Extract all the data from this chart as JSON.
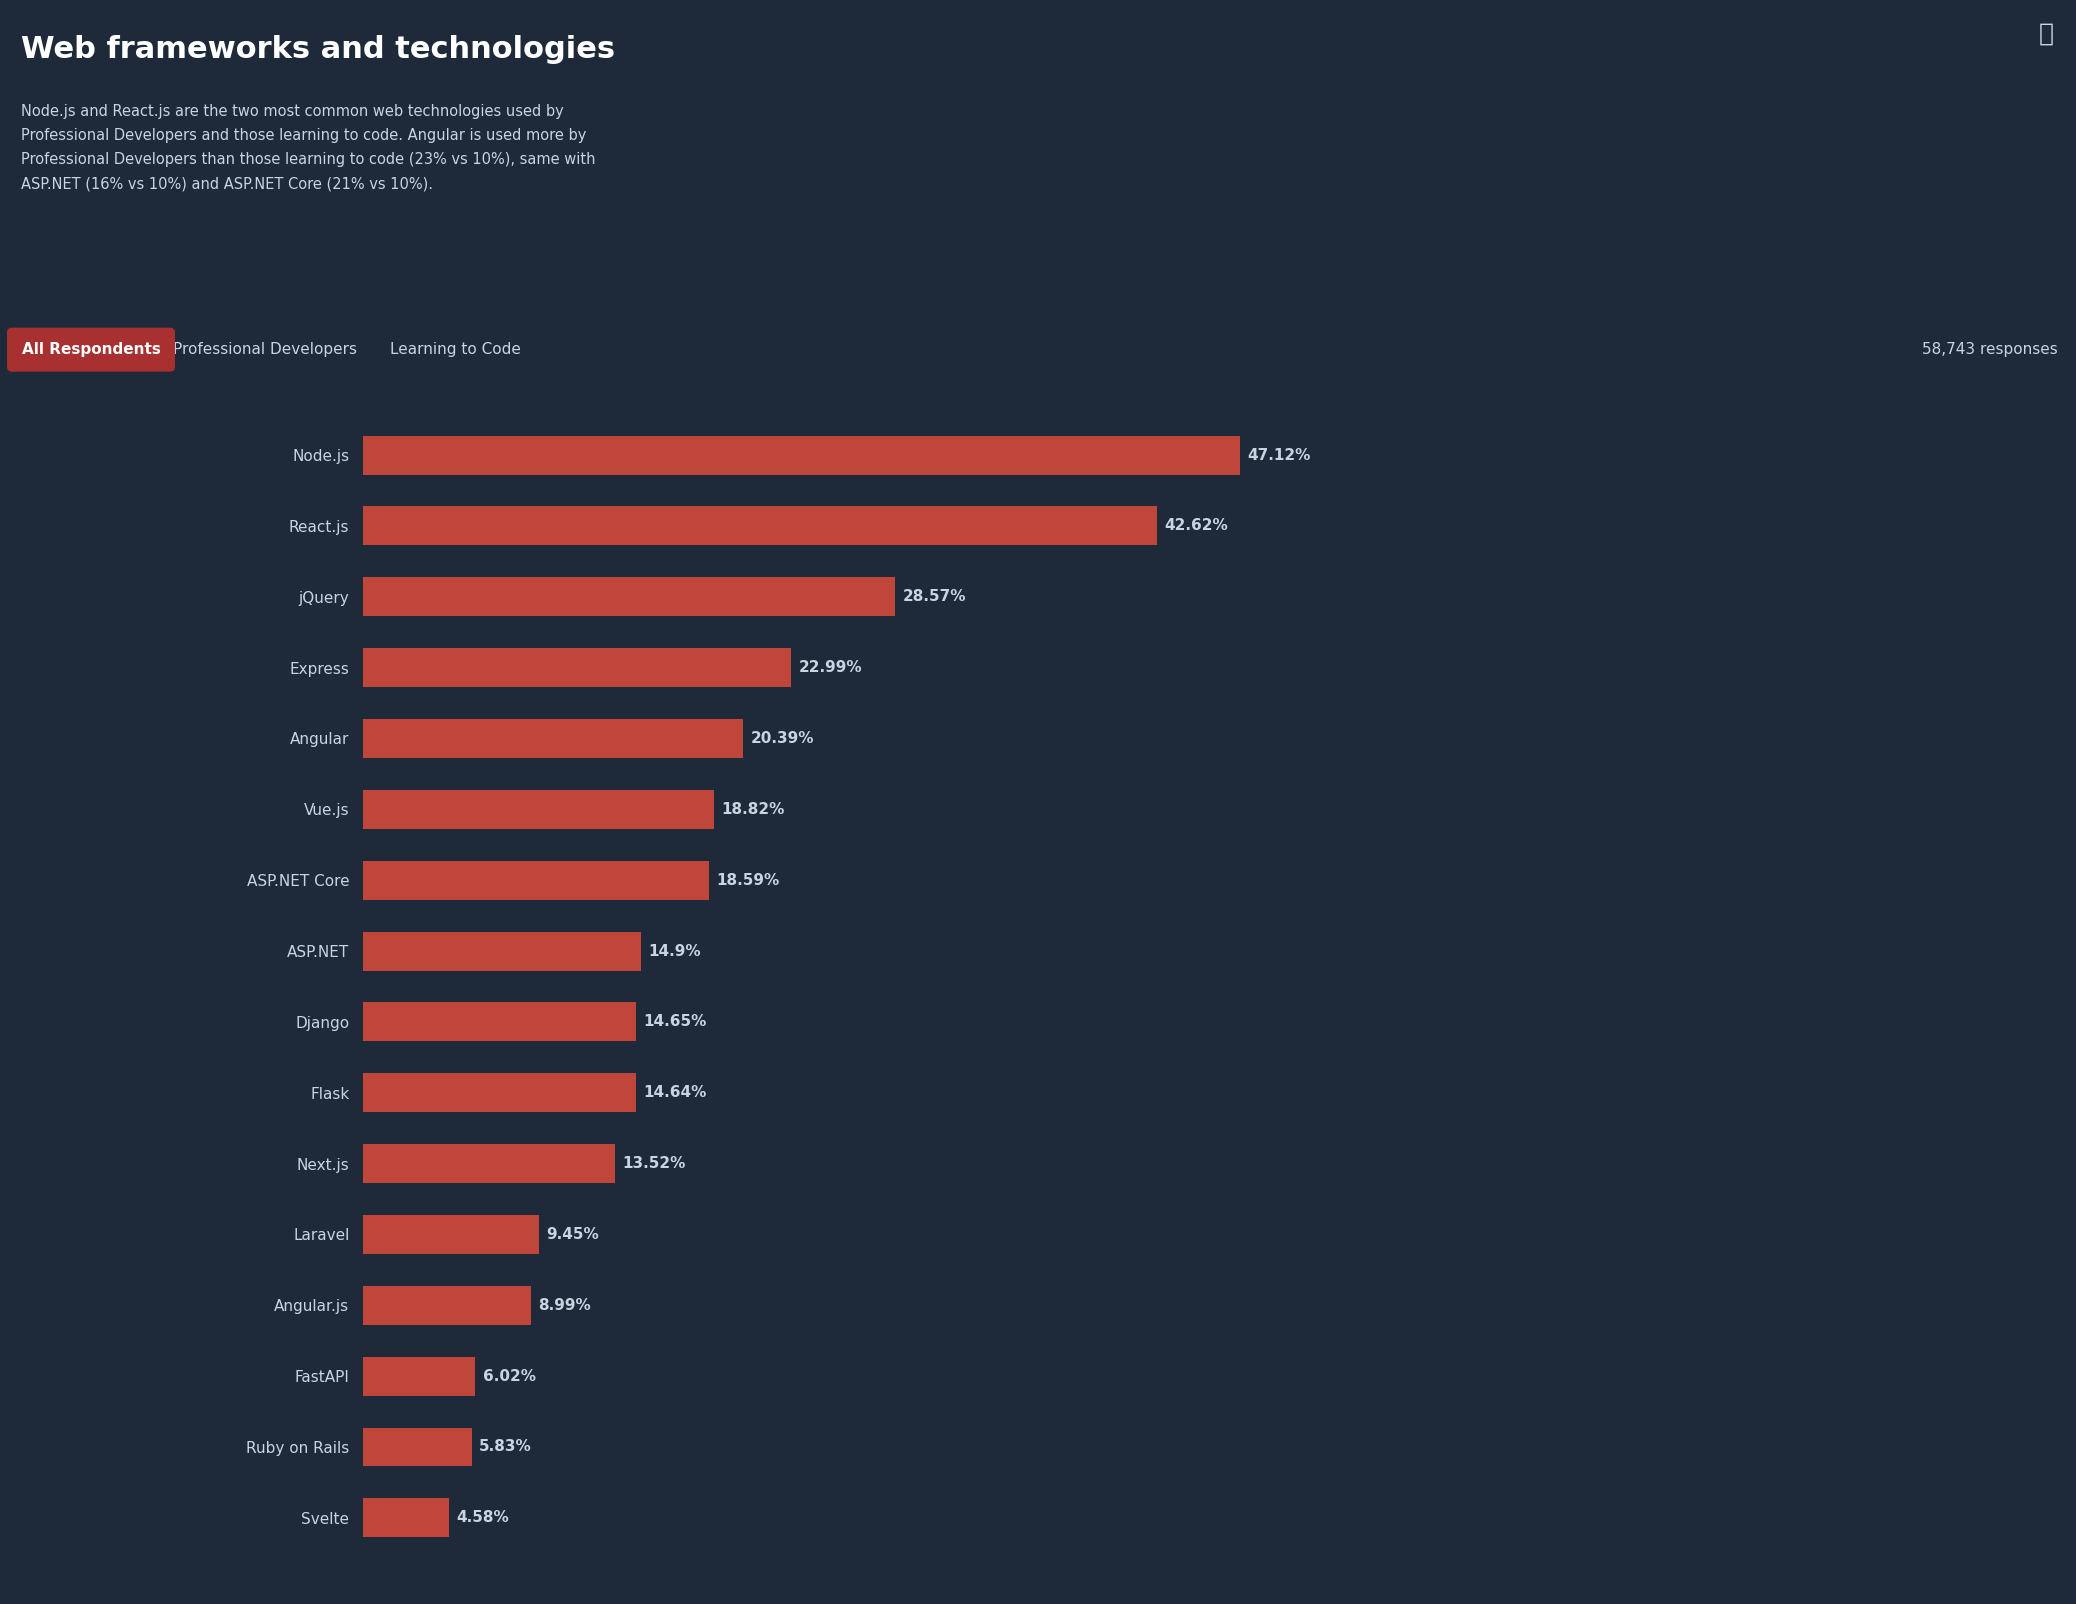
{
  "title": "Web frameworks and technologies",
  "subtitle": "Node.js and React.js are the two most common web technologies used by\nProfessional Developers and those learning to code. Angular is used more by\nProfessional Developers than those learning to code (23% vs 10%), same with\nASP.NET (16% vs 10%) and ASP.NET Core (21% vs 10%).",
  "response_count": "58,743 responses",
  "tab_active": "All Respondents",
  "tab_inactive": [
    "Professional Developers",
    "Learning to Code"
  ],
  "bg_color": "#1e2a3a",
  "bar_color": "#c0453a",
  "text_color": "#c8d4e0",
  "title_color": "#ffffff",
  "categories": [
    "Node.js",
    "React.js",
    "jQuery",
    "Express",
    "Angular",
    "Vue.js",
    "ASP.NET Core",
    "ASP.NET",
    "Django",
    "Flask",
    "Next.js",
    "Laravel",
    "Angular.js",
    "FastAPI",
    "Ruby on Rails",
    "Svelte"
  ],
  "values": [
    47.12,
    42.62,
    28.57,
    22.99,
    20.39,
    18.82,
    18.59,
    14.9,
    14.65,
    14.64,
    13.52,
    9.45,
    8.99,
    6.02,
    5.83,
    4.58
  ],
  "labels": [
    "47.12%",
    "42.62%",
    "28.57%",
    "22.99%",
    "20.39%",
    "18.82%",
    "18.59%",
    "14.9%",
    "14.65%",
    "14.64%",
    "13.52%",
    "9.45%",
    "8.99%",
    "6.02%",
    "5.83%",
    "4.58%"
  ],
  "figsize": [
    20.76,
    16.04
  ],
  "dpi": 100,
  "tab_active_color": "#a83030",
  "separator_color": "#2e3f52",
  "label_fontsize": 11,
  "title_fontsize": 22,
  "subtitle_fontsize": 10.5,
  "bar_height": 0.55,
  "xlim": 58
}
